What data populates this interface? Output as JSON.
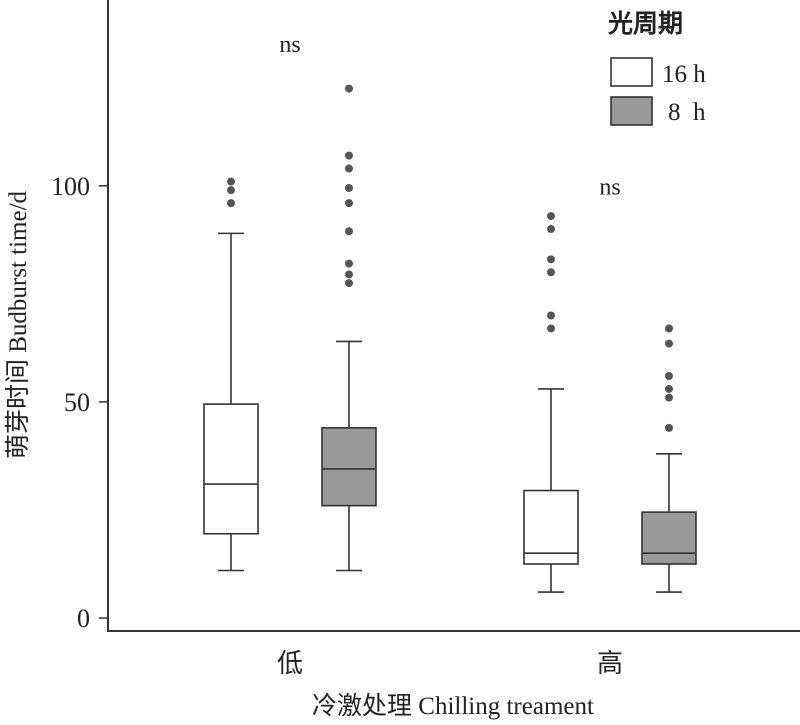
{
  "chart_data": {
    "type": "box",
    "title": "",
    "ylabel": "萌芽时间 Budburst time/d",
    "xlabel": "冷激处理  Chilling treament",
    "ylim": [
      -3,
      143
    ],
    "yticks": [
      0,
      50,
      100
    ],
    "categories": [
      "低",
      "高"
    ],
    "legend": {
      "title": "光周期",
      "position": "top-right"
    },
    "series": [
      {
        "name": "16 h",
        "color": "#ffffff",
        "boxes": [
          {
            "category": "低",
            "min": 11,
            "q1": 19.5,
            "median": 31,
            "q3": 49.5,
            "max": 89,
            "outliers": [
              96,
              99,
              101
            ]
          },
          {
            "category": "高",
            "min": 6,
            "q1": 12.5,
            "median": 15,
            "q3": 29.5,
            "max": 53,
            "outliers": [
              67,
              70,
              80,
              83,
              90,
              93
            ]
          }
        ]
      },
      {
        "name": "8  h",
        "color": "#999999",
        "boxes": [
          {
            "category": "低",
            "min": 11,
            "q1": 26,
            "median": 34.5,
            "q3": 44,
            "max": 64,
            "outliers": [
              77.5,
              79.5,
              82,
              89.5,
              96,
              99.5,
              104,
              107,
              122.5
            ]
          },
          {
            "category": "高",
            "min": 6,
            "q1": 12.5,
            "median": 15,
            "q3": 24.5,
            "max": 38,
            "outliers": [
              44,
              51,
              53,
              56,
              63.5,
              67
            ]
          }
        ]
      }
    ],
    "annotations": [
      {
        "category": "低",
        "text": "ns",
        "y": 131
      },
      {
        "category": "高",
        "text": "ns",
        "y": 98
      }
    ]
  }
}
